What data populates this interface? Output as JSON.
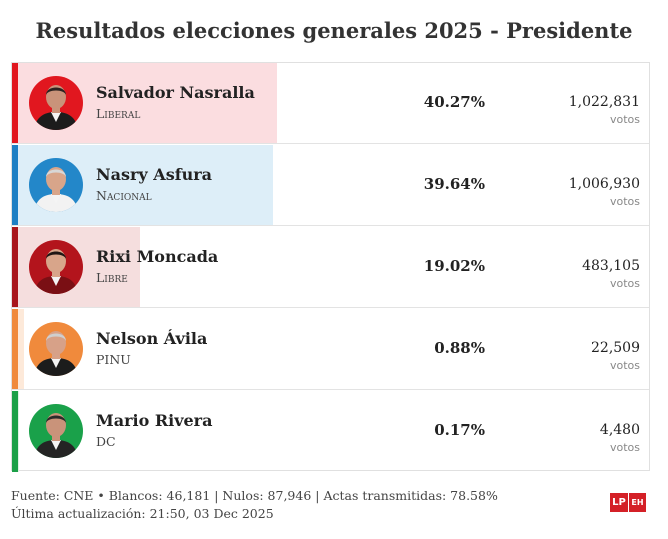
{
  "title": "Resultados elecciones generales 2025 - Presidente",
  "votes_label": "votos",
  "candidates": [
    {
      "name": "Salvador Nasralla",
      "party": "Liberal",
      "percent": "40.27%",
      "share": 40.27,
      "votes": "1,022,831",
      "color": "#e1171f",
      "fill": "#fbdde0",
      "avatar_bg": "#e1171f",
      "skin": "#c9937a",
      "hair": "#2b2220",
      "shirt": "#1c1c1c"
    },
    {
      "name": "Nasry Asfura",
      "party": "Nacional",
      "percent": "39.64%",
      "share": 39.64,
      "votes": "1,006,930",
      "color": "#1d7fc4",
      "fill": "#ddeef8",
      "avatar_bg": "#2387c9",
      "skin": "#d8a58a",
      "hair": "#d7d7d7",
      "shirt": "#f2f2f2"
    },
    {
      "name": "Rixi Moncada",
      "party": "Libre",
      "percent": "19.02%",
      "share": 19.02,
      "votes": "483,105",
      "color": "#a8161c",
      "fill": "#f5dede",
      "avatar_bg": "#b3141c",
      "skin": "#d8a58a",
      "hair": "#1e1614",
      "shirt": "#7a0f14"
    },
    {
      "name": "Nelson Ávila",
      "party": "PINU",
      "percent": "0.88%",
      "share": 0.88,
      "votes": "22,509",
      "color": "#f08a3c",
      "fill": "#fde9d9",
      "avatar_bg": "#f08a3c",
      "skin": "#d7a188",
      "hair": "#cfcfcf",
      "shirt": "#1c1c1c"
    },
    {
      "name": "Mario Rivera",
      "party": "DC",
      "percent": "0.17%",
      "share": 0.17,
      "votes": "4,480",
      "color": "#1ca048",
      "fill": "#dff2e5",
      "avatar_bg": "#1aa14a",
      "skin": "#c9937a",
      "hair": "#2a2a2a",
      "shirt": "#242424"
    }
  ],
  "footer": {
    "line1": "Fuente: CNE • Blancos: 46,181 | Nulos: 87,946 | Actas transmitidas: 78.58%",
    "line2": "Última actualización: 21:50, 03 Dec 2025"
  },
  "logo": {
    "lp": "LP",
    "eh": "EH",
    "color": "#d42027"
  }
}
